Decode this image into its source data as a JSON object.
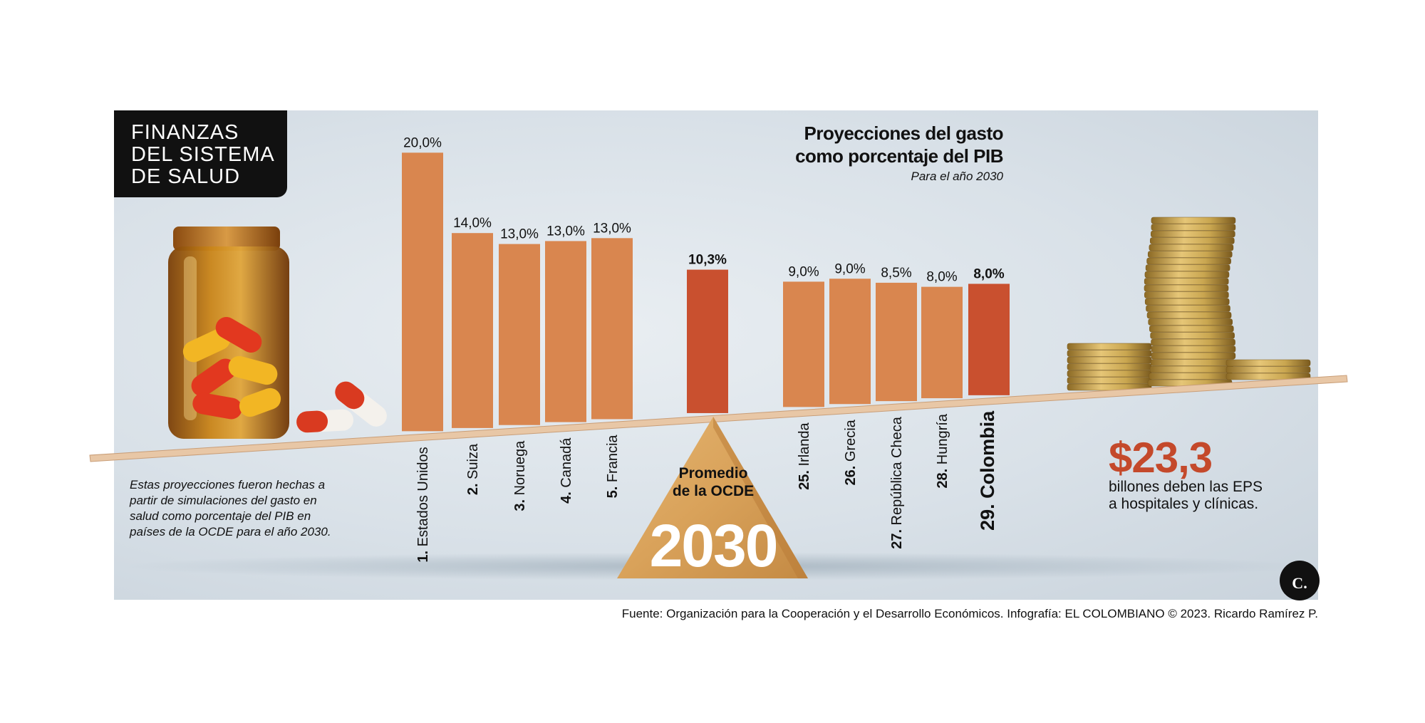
{
  "header": {
    "title_lines": [
      "FINANZAS",
      "DEL SISTEMA",
      "DE SALUD"
    ]
  },
  "chart_data": {
    "type": "bar",
    "title_lines": [
      "Proyecciones del gasto",
      "como porcentaje del PIB"
    ],
    "subtitle": "Para el año 2030",
    "categories": [
      "1. Estados Unidos",
      "2. Suiza",
      "3. Noruega",
      "4. Canadá",
      "5. Francia",
      "Promedio de la OCDE",
      "25. Irlanda",
      "26. Grecia",
      "27. República Checa",
      "28. Hungría",
      "29. Colombia"
    ],
    "values": [
      20.0,
      14.0,
      13.0,
      13.0,
      13.0,
      10.3,
      9.0,
      9.0,
      8.5,
      8.0,
      8.0
    ],
    "value_labels": [
      "20,0%",
      "14,0%",
      "13,0%",
      "13,0%",
      "13,0%",
      "10,3%",
      "9,0%",
      "9,0%",
      "8,5%",
      "8,0%",
      "8,0%"
    ],
    "bar_colors": [
      "#d9864f",
      "#d9864f",
      "#d9864f",
      "#d9864f",
      "#d9864f",
      "#c9502f",
      "#d9864f",
      "#d9864f",
      "#d9864f",
      "#d9864f",
      "#c9502f"
    ],
    "highlight": [
      "Promedio de la OCDE",
      "29. Colombia"
    ],
    "ylim": [
      0,
      20
    ],
    "grid": false
  },
  "label_parts": [
    {
      "num": "1.",
      "name": "Estados Unidos",
      "bold": false
    },
    {
      "num": "2.",
      "name": "Suiza",
      "bold": false
    },
    {
      "num": "3.",
      "name": "Noruega",
      "bold": false
    },
    {
      "num": "4.",
      "name": "Canadá",
      "bold": false
    },
    {
      "num": "5.",
      "name": "Francia",
      "bold": false
    },
    {
      "num": "",
      "name": "",
      "bold": false
    },
    {
      "num": "25.",
      "name": "Irlanda",
      "bold": false
    },
    {
      "num": "26.",
      "name": "Grecia",
      "bold": false
    },
    {
      "num": "27.",
      "name": "República Checa",
      "bold": false
    },
    {
      "num": "28.",
      "name": "Hungría",
      "bold": false
    },
    {
      "num": "29.",
      "name": "Colombia",
      "bold": true
    }
  ],
  "fulcrum": {
    "label_lines": [
      "Promedio",
      "de la OCDE"
    ],
    "year": "2030"
  },
  "note_text": "Estas proyecciones fueron hechas a partir de simulaciones del gasto en salud como porcentaje del PIB en países de la OCDE para el año 2030.",
  "debt": {
    "amount": "$23,3",
    "text_line_1": "billones deben las EPS",
    "text_line_2": "a hospitales y clínicas."
  },
  "source_text": "Fuente: Organización para la Cooperación y el Desarrollo Económicos. Infografía: EL COLOMBIANO © 2023. Ricardo Ramírez P.",
  "logo": {
    "letter": "C",
    "dot": "."
  },
  "colors": {
    "bar": "#d9864f",
    "highlight": "#c9502f",
    "amount": "#c4492b",
    "title_box": "#111111",
    "plank": "#e8c7a6"
  },
  "icons": [
    "pill-bottle-icon",
    "capsule-icon",
    "coin-stack-icon",
    "wooden-fulcrum-icon",
    "el-colombiano-logo-icon"
  ]
}
